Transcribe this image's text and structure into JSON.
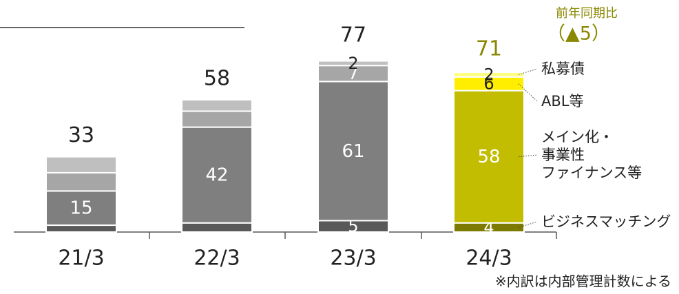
{
  "chart_data": {
    "type": "stacked-bar",
    "categories": [
      "21/3",
      "22/3",
      "23/3",
      "24/3"
    ],
    "totals": [
      33,
      58,
      77,
      71
    ],
    "series": [
      {
        "name": "ビジネスマッチング",
        "colors": [
          "#595959",
          "#595959",
          "#595959",
          "#7d7a00"
        ],
        "values": [
          3,
          4,
          5,
          4
        ],
        "value_labels": [
          null,
          null,
          "5",
          "4"
        ]
      },
      {
        "name": "メイン化・\n事業性\nファイナンス等",
        "colors": [
          "#7f7f7f",
          "#7f7f7f",
          "#7f7f7f",
          "#c2bd00"
        ],
        "values": [
          15,
          42,
          61,
          58
        ],
        "value_labels": [
          "15",
          "42",
          "61",
          "58"
        ]
      },
      {
        "name": "ABL等",
        "colors": [
          "#a6a6a6",
          "#a6a6a6",
          "#a6a6a6",
          "#ffee00"
        ],
        "values": [
          8,
          7,
          7,
          6
        ],
        "value_labels": [
          null,
          null,
          "7",
          "6"
        ]
      },
      {
        "name": "私募債",
        "colors": [
          "#bfbfbf",
          "#bfbfbf",
          "#bfbfbf",
          "#ffff80"
        ],
        "values": [
          7,
          5,
          2,
          2
        ],
        "value_labels": [
          null,
          null,
          "2",
          "2"
        ]
      }
    ],
    "ylim": [
      0,
      80
    ],
    "annotation_title": "前年同期比",
    "annotation_value": "（▲5）",
    "highlight_color": "#8a8700",
    "footnote": "※内訳は内部管理計数による"
  }
}
